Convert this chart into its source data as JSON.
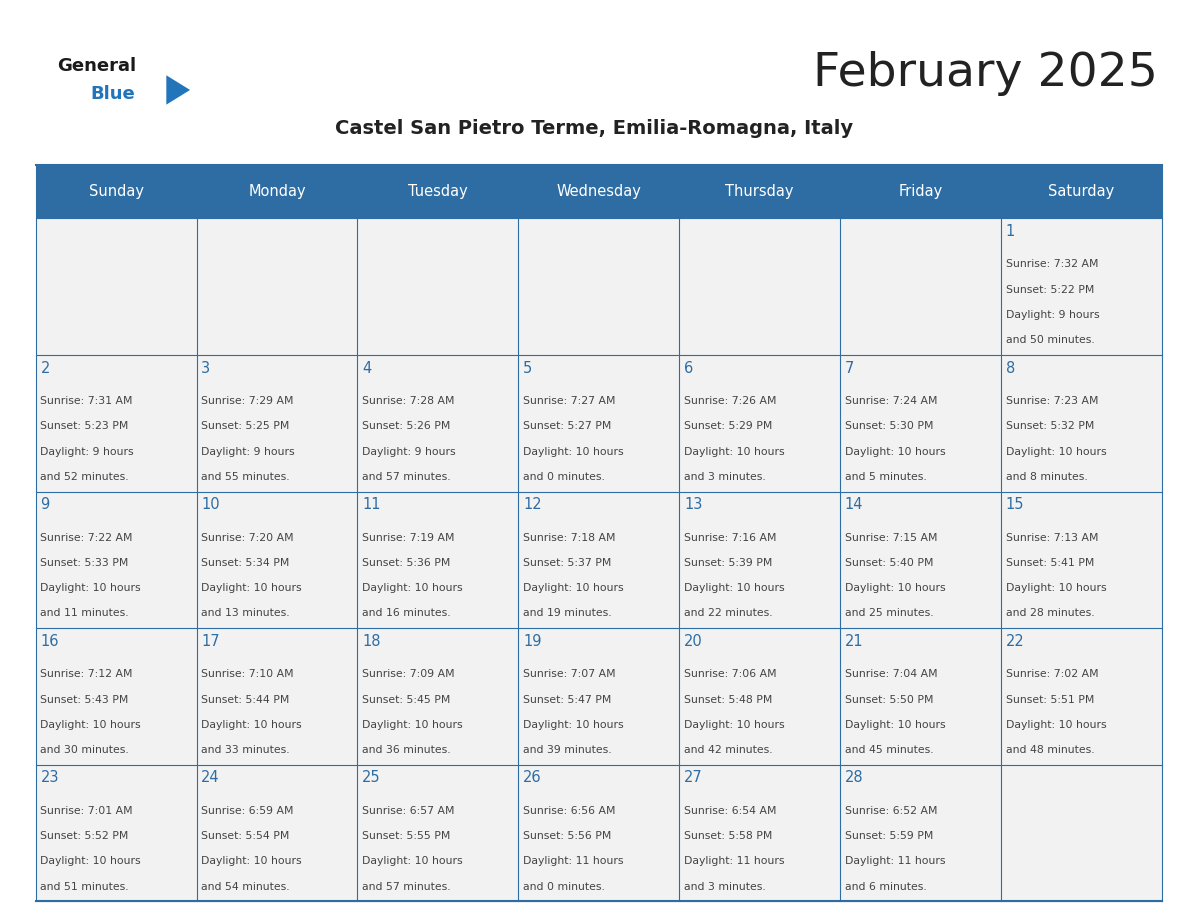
{
  "title": "February 2025",
  "subtitle": "Castel San Pietro Terme, Emilia-Romagna, Italy",
  "days_of_week": [
    "Sunday",
    "Monday",
    "Tuesday",
    "Wednesday",
    "Thursday",
    "Friday",
    "Saturday"
  ],
  "header_bg": "#2E6DA4",
  "header_text": "#FFFFFF",
  "cell_bg": "#F2F2F2",
  "border_color": "#2E6DA4",
  "text_color": "#444444",
  "day_number_color": "#2E6DA4",
  "logo_general_color": "#1a1a1a",
  "logo_blue_color": "#2275bb",
  "calendar_data": [
    [
      null,
      null,
      null,
      null,
      null,
      null,
      {
        "day": 1,
        "sunrise": "7:32 AM",
        "sunset": "5:22 PM",
        "daylight_h": "9 hours",
        "daylight_m": "and 50 minutes."
      }
    ],
    [
      {
        "day": 2,
        "sunrise": "7:31 AM",
        "sunset": "5:23 PM",
        "daylight_h": "9 hours",
        "daylight_m": "and 52 minutes."
      },
      {
        "day": 3,
        "sunrise": "7:29 AM",
        "sunset": "5:25 PM",
        "daylight_h": "9 hours",
        "daylight_m": "and 55 minutes."
      },
      {
        "day": 4,
        "sunrise": "7:28 AM",
        "sunset": "5:26 PM",
        "daylight_h": "9 hours",
        "daylight_m": "and 57 minutes."
      },
      {
        "day": 5,
        "sunrise": "7:27 AM",
        "sunset": "5:27 PM",
        "daylight_h": "10 hours",
        "daylight_m": "and 0 minutes."
      },
      {
        "day": 6,
        "sunrise": "7:26 AM",
        "sunset": "5:29 PM",
        "daylight_h": "10 hours",
        "daylight_m": "and 3 minutes."
      },
      {
        "day": 7,
        "sunrise": "7:24 AM",
        "sunset": "5:30 PM",
        "daylight_h": "10 hours",
        "daylight_m": "and 5 minutes."
      },
      {
        "day": 8,
        "sunrise": "7:23 AM",
        "sunset": "5:32 PM",
        "daylight_h": "10 hours",
        "daylight_m": "and 8 minutes."
      }
    ],
    [
      {
        "day": 9,
        "sunrise": "7:22 AM",
        "sunset": "5:33 PM",
        "daylight_h": "10 hours",
        "daylight_m": "and 11 minutes."
      },
      {
        "day": 10,
        "sunrise": "7:20 AM",
        "sunset": "5:34 PM",
        "daylight_h": "10 hours",
        "daylight_m": "and 13 minutes."
      },
      {
        "day": 11,
        "sunrise": "7:19 AM",
        "sunset": "5:36 PM",
        "daylight_h": "10 hours",
        "daylight_m": "and 16 minutes."
      },
      {
        "day": 12,
        "sunrise": "7:18 AM",
        "sunset": "5:37 PM",
        "daylight_h": "10 hours",
        "daylight_m": "and 19 minutes."
      },
      {
        "day": 13,
        "sunrise": "7:16 AM",
        "sunset": "5:39 PM",
        "daylight_h": "10 hours",
        "daylight_m": "and 22 minutes."
      },
      {
        "day": 14,
        "sunrise": "7:15 AM",
        "sunset": "5:40 PM",
        "daylight_h": "10 hours",
        "daylight_m": "and 25 minutes."
      },
      {
        "day": 15,
        "sunrise": "7:13 AM",
        "sunset": "5:41 PM",
        "daylight_h": "10 hours",
        "daylight_m": "and 28 minutes."
      }
    ],
    [
      {
        "day": 16,
        "sunrise": "7:12 AM",
        "sunset": "5:43 PM",
        "daylight_h": "10 hours",
        "daylight_m": "and 30 minutes."
      },
      {
        "day": 17,
        "sunrise": "7:10 AM",
        "sunset": "5:44 PM",
        "daylight_h": "10 hours",
        "daylight_m": "and 33 minutes."
      },
      {
        "day": 18,
        "sunrise": "7:09 AM",
        "sunset": "5:45 PM",
        "daylight_h": "10 hours",
        "daylight_m": "and 36 minutes."
      },
      {
        "day": 19,
        "sunrise": "7:07 AM",
        "sunset": "5:47 PM",
        "daylight_h": "10 hours",
        "daylight_m": "and 39 minutes."
      },
      {
        "day": 20,
        "sunrise": "7:06 AM",
        "sunset": "5:48 PM",
        "daylight_h": "10 hours",
        "daylight_m": "and 42 minutes."
      },
      {
        "day": 21,
        "sunrise": "7:04 AM",
        "sunset": "5:50 PM",
        "daylight_h": "10 hours",
        "daylight_m": "and 45 minutes."
      },
      {
        "day": 22,
        "sunrise": "7:02 AM",
        "sunset": "5:51 PM",
        "daylight_h": "10 hours",
        "daylight_m": "and 48 minutes."
      }
    ],
    [
      {
        "day": 23,
        "sunrise": "7:01 AM",
        "sunset": "5:52 PM",
        "daylight_h": "10 hours",
        "daylight_m": "and 51 minutes."
      },
      {
        "day": 24,
        "sunrise": "6:59 AM",
        "sunset": "5:54 PM",
        "daylight_h": "10 hours",
        "daylight_m": "and 54 minutes."
      },
      {
        "day": 25,
        "sunrise": "6:57 AM",
        "sunset": "5:55 PM",
        "daylight_h": "10 hours",
        "daylight_m": "and 57 minutes."
      },
      {
        "day": 26,
        "sunrise": "6:56 AM",
        "sunset": "5:56 PM",
        "daylight_h": "11 hours",
        "daylight_m": "and 0 minutes."
      },
      {
        "day": 27,
        "sunrise": "6:54 AM",
        "sunset": "5:58 PM",
        "daylight_h": "11 hours",
        "daylight_m": "and 3 minutes."
      },
      {
        "day": 28,
        "sunrise": "6:52 AM",
        "sunset": "5:59 PM",
        "daylight_h": "11 hours",
        "daylight_m": "and 6 minutes."
      },
      null
    ]
  ]
}
